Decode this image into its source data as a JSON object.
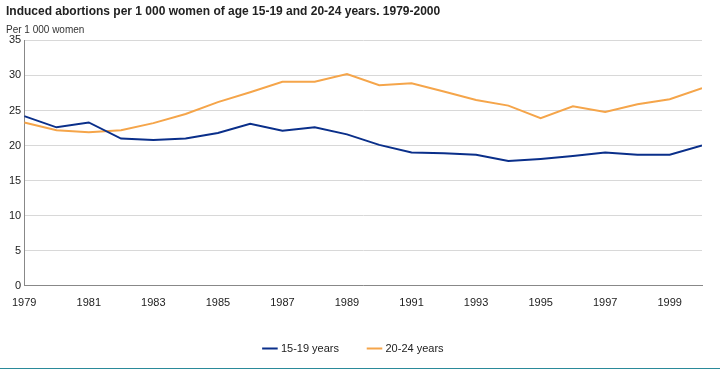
{
  "chart_data": {
    "type": "line",
    "title": "Induced abortions per 1 000 women of age 15-19 and 20-24 years. 1979-2000",
    "y_label": "Per 1 000 women",
    "x": [
      1979,
      1980,
      1981,
      1982,
      1983,
      1984,
      1985,
      1986,
      1987,
      1988,
      1989,
      1990,
      1991,
      1992,
      1993,
      1994,
      1995,
      1996,
      1997,
      1998,
      1999,
      2000
    ],
    "xlim": [
      1979,
      2000
    ],
    "xticks": [
      1979,
      1981,
      1983,
      1985,
      1987,
      1989,
      1991,
      1993,
      1995,
      1997,
      1999
    ],
    "ylim": [
      0,
      35
    ],
    "yticks": [
      0,
      5,
      10,
      15,
      20,
      25,
      30,
      35
    ],
    "grid": true,
    "legend": "bottom",
    "series": [
      {
        "name": "15-19 years",
        "color": "#0a2f8a",
        "values": [
          24.2,
          22.6,
          23.3,
          21.0,
          20.8,
          21.0,
          21.8,
          23.1,
          22.1,
          22.6,
          21.6,
          20.1,
          19.0,
          18.9,
          18.7,
          17.8,
          18.1,
          18.5,
          19.0,
          18.7,
          18.7,
          20.0
        ]
      },
      {
        "name": "20-24 years",
        "color": "#f5a54a",
        "values": [
          23.3,
          22.2,
          21.9,
          22.2,
          23.2,
          24.5,
          26.2,
          27.6,
          29.1,
          29.1,
          30.2,
          28.6,
          28.9,
          27.7,
          26.5,
          25.7,
          23.9,
          25.6,
          24.8,
          25.9,
          26.6,
          28.2
        ]
      }
    ]
  }
}
